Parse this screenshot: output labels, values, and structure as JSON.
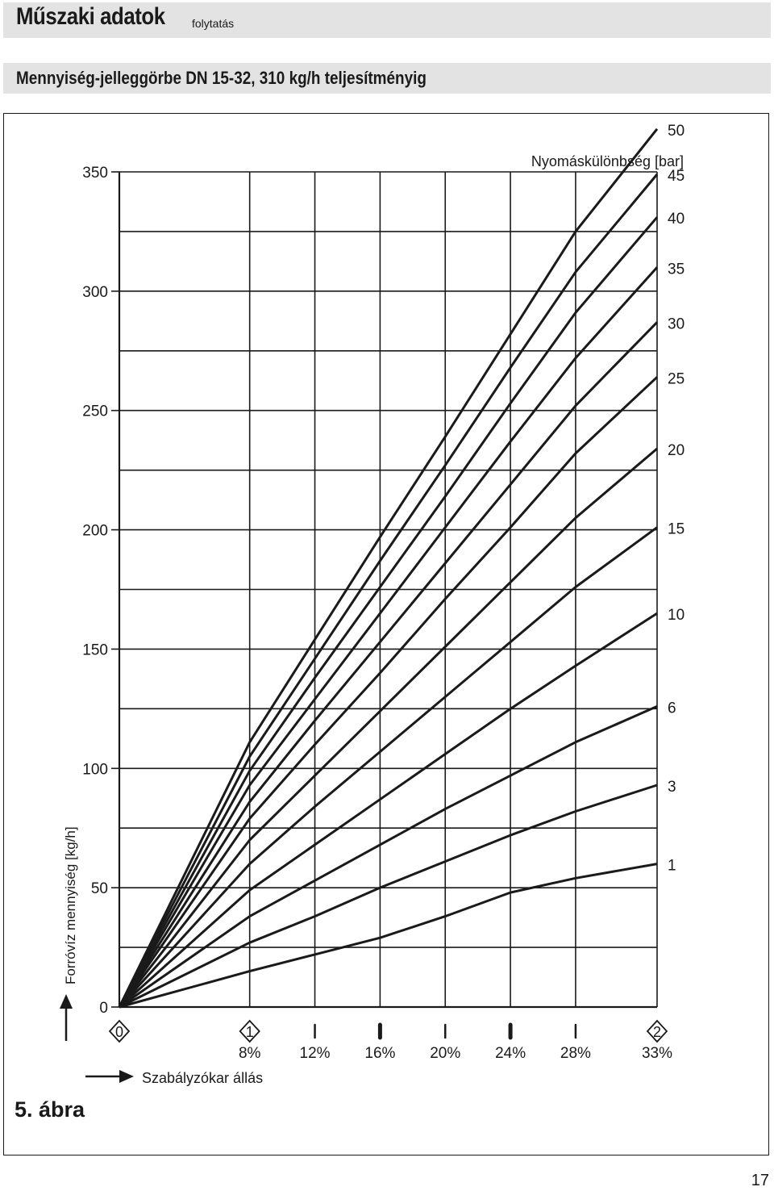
{
  "header": {
    "title": "Műszaki adatok",
    "title_suffix": "folytatás",
    "subtitle": "Mennyiség-jelleggörbe DN 15-32, 310 kg/h teljesítményig"
  },
  "figure_label": "5. ábra",
  "page_number": "17",
  "chart_data": {
    "type": "line",
    "ylabel": "Forróvíz mennyiség [kg/h]",
    "xlabel": "Szabályzókar állás",
    "series_label": "Nyomáskülönbség [bar]",
    "ylim": [
      0,
      350
    ],
    "y_ticks": [
      "0",
      "50",
      "100",
      "150",
      "200",
      "250",
      "300",
      "350"
    ],
    "x": [
      0,
      8,
      12,
      16,
      20,
      24,
      28,
      33
    ],
    "x_tick_labels": [
      "8%",
      "12%",
      "16%",
      "20%",
      "24%",
      "28%",
      "33%"
    ],
    "x_markers": [
      {
        "x": 0,
        "label": "0",
        "kind": "diamond"
      },
      {
        "x": 8,
        "label": "1",
        "kind": "diamond"
      },
      {
        "x": 12,
        "label": "",
        "kind": "thin"
      },
      {
        "x": 16,
        "label": "",
        "kind": "thick"
      },
      {
        "x": 20,
        "label": "",
        "kind": "thin"
      },
      {
        "x": 24,
        "label": "",
        "kind": "thick"
      },
      {
        "x": 28,
        "label": "",
        "kind": "thin"
      },
      {
        "x": 33,
        "label": "2",
        "kind": "diamond"
      }
    ],
    "grid": true,
    "series": [
      {
        "name": "1",
        "values": [
          0,
          15,
          22,
          29,
          38,
          48,
          54,
          60
        ]
      },
      {
        "name": "3",
        "values": [
          0,
          27,
          38,
          50,
          61,
          72,
          82,
          93
        ]
      },
      {
        "name": "6",
        "values": [
          0,
          38,
          53,
          68,
          83,
          97,
          111,
          126
        ]
      },
      {
        "name": "10",
        "values": [
          0,
          49,
          68,
          87,
          106,
          125,
          143,
          165
        ]
      },
      {
        "name": "15",
        "values": [
          0,
          60,
          84,
          107,
          130,
          153,
          176,
          201
        ]
      },
      {
        "name": "20",
        "values": [
          0,
          70,
          97,
          124,
          151,
          178,
          205,
          234
        ]
      },
      {
        "name": "25",
        "values": [
          0,
          79,
          110,
          140,
          171,
          201,
          232,
          264
        ]
      },
      {
        "name": "30",
        "values": [
          0,
          86,
          120,
          153,
          186,
          219,
          252,
          287
        ]
      },
      {
        "name": "35",
        "values": [
          0,
          93,
          129,
          165,
          201,
          237,
          272,
          310
        ]
      },
      {
        "name": "40",
        "values": [
          0,
          99,
          138,
          176,
          214,
          253,
          291,
          331
        ]
      },
      {
        "name": "45",
        "values": [
          0,
          105,
          146,
          187,
          227,
          268,
          308,
          349
        ]
      },
      {
        "name": "50",
        "values": [
          0,
          111,
          154,
          197,
          239,
          282,
          325,
          368
        ]
      }
    ]
  }
}
